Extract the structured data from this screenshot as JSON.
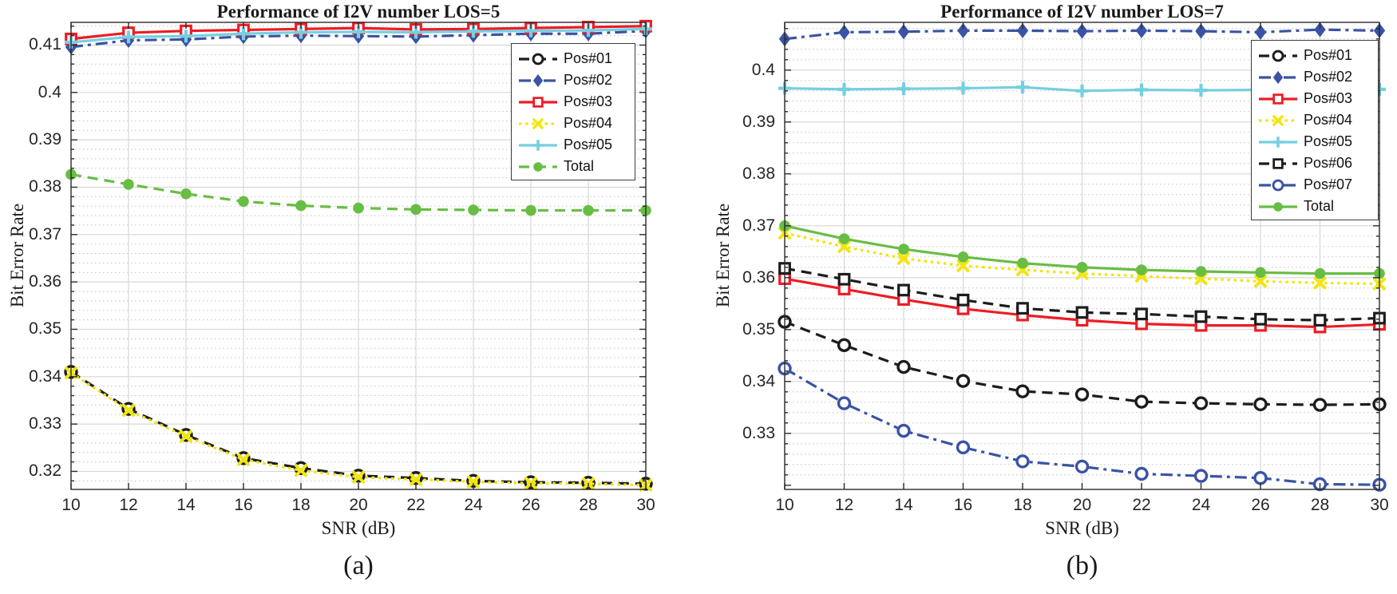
{
  "figure_captions": {
    "left": "(a)",
    "right": "(b)"
  },
  "chart_data": [
    {
      "type": "line",
      "title": "Performance of I2V number LOS=5",
      "xlabel": "SNR (dB)",
      "ylabel": "Bit Error Rate",
      "caption": "(a)",
      "x": [
        10,
        12,
        14,
        16,
        18,
        20,
        22,
        24,
        26,
        28,
        30
      ],
      "xlim": [
        10,
        30
      ],
      "ylim": [
        0.3162,
        0.4148
      ],
      "xtick_labels": [
        "10",
        "12",
        "14",
        "16",
        "18",
        "20",
        "22",
        "24",
        "26",
        "28",
        "30"
      ],
      "ytick_values": [
        0.32,
        0.33,
        0.34,
        0.35,
        0.36,
        0.37,
        0.38,
        0.39,
        0.4,
        0.41
      ],
      "ytick_labels": [
        "0.32",
        "0.33",
        "0.34",
        "0.35",
        "0.36",
        "0.37",
        "0.38",
        "0.39",
        "0.4",
        "0.41"
      ],
      "y_minor_step": 0.002,
      "grid": "major-solid minor-dotted",
      "legend_position": "inset-top-right",
      "series": [
        {
          "name": "Pos#01",
          "color": "#1c1c1c",
          "line": "dashed",
          "marker": "circle-open",
          "values": [
            0.341,
            0.3332,
            0.3277,
            0.3228,
            0.3207,
            0.3191,
            0.3186,
            0.318,
            0.3177,
            0.3176,
            0.3174
          ]
        },
        {
          "name": "Pos#02",
          "color": "#3a53a4",
          "line": "dashdot",
          "marker": "diamond-fill",
          "values": [
            0.4096,
            0.411,
            0.4112,
            0.4118,
            0.412,
            0.4119,
            0.4118,
            0.4121,
            0.4124,
            0.4124,
            0.413
          ]
        },
        {
          "name": "Pos#03",
          "color": "#ed1c24",
          "line": "solid",
          "marker": "square-open",
          "values": [
            0.4113,
            0.4126,
            0.413,
            0.4132,
            0.4134,
            0.4136,
            0.4133,
            0.4134,
            0.4136,
            0.4138,
            0.414
          ]
        },
        {
          "name": "Pos#04",
          "color": "#f2e50e",
          "line": "dotted",
          "marker": "x-mark",
          "values": [
            0.3408,
            0.3329,
            0.3274,
            0.3225,
            0.3202,
            0.3188,
            0.3183,
            0.3178,
            0.3175,
            0.3174,
            0.3171
          ]
        },
        {
          "name": "Pos#05",
          "color": "#76cfe0",
          "line": "solid",
          "marker": "plus-mark",
          "values": [
            0.4106,
            0.4117,
            0.4119,
            0.4124,
            0.4127,
            0.4128,
            0.4127,
            0.4129,
            0.413,
            0.4131,
            0.4134
          ]
        },
        {
          "name": "Total",
          "color": "#68bd45",
          "line": "dashed",
          "marker": "circle-fill",
          "values": [
            0.3827,
            0.3806,
            0.3786,
            0.377,
            0.3761,
            0.3756,
            0.3753,
            0.3752,
            0.3751,
            0.3751,
            0.3751
          ]
        }
      ]
    },
    {
      "type": "line",
      "title": "Performance of I2V number LOS=7",
      "xlabel": "SNR (dB)",
      "ylabel": "Bit Error Rate",
      "caption": "(b)",
      "x": [
        10,
        12,
        14,
        16,
        18,
        20,
        22,
        24,
        26,
        28,
        30
      ],
      "xlim": [
        10,
        30
      ],
      "ylim": [
        0.3192,
        0.4092
      ],
      "xtick_labels": [
        "10",
        "12",
        "14",
        "16",
        "18",
        "20",
        "22",
        "24",
        "26",
        "28",
        "30"
      ],
      "ytick_values": [
        0.33,
        0.34,
        0.35,
        0.36,
        0.37,
        0.38,
        0.39,
        0.4
      ],
      "ytick_labels": [
        "0.33",
        "0.34",
        "0.35",
        "0.36",
        "0.37",
        "0.38",
        "0.39",
        "0.4"
      ],
      "y_minor_step": 0.002,
      "grid": "major-solid minor-dotted",
      "legend_position": "inset-top-right",
      "series": [
        {
          "name": "Pos#01",
          "color": "#1c1c1c",
          "line": "dashed",
          "marker": "circle-open",
          "values": [
            0.3515,
            0.347,
            0.3428,
            0.3401,
            0.3381,
            0.3375,
            0.3361,
            0.3358,
            0.3356,
            0.3355,
            0.3356
          ]
        },
        {
          "name": "Pos#02",
          "color": "#3a53a4",
          "line": "dashdot",
          "marker": "diamond-fill",
          "values": [
            0.406,
            0.4073,
            0.4074,
            0.4076,
            0.4076,
            0.4075,
            0.4076,
            0.4075,
            0.4073,
            0.4078,
            0.4076
          ]
        },
        {
          "name": "Pos#03",
          "color": "#ed1c24",
          "line": "solid",
          "marker": "square-open",
          "values": [
            0.3598,
            0.3578,
            0.3558,
            0.354,
            0.3528,
            0.3518,
            0.3511,
            0.3508,
            0.3508,
            0.3505,
            0.351
          ]
        },
        {
          "name": "Pos#04",
          "color": "#f2e50e",
          "line": "dotted",
          "marker": "x-mark",
          "values": [
            0.3686,
            0.366,
            0.3637,
            0.3623,
            0.3615,
            0.3608,
            0.3603,
            0.3598,
            0.3593,
            0.359,
            0.3588
          ]
        },
        {
          "name": "Pos#05",
          "color": "#76cfe0",
          "line": "solid",
          "marker": "plus-mark",
          "values": [
            0.3965,
            0.3963,
            0.3964,
            0.3965,
            0.3967,
            0.396,
            0.3962,
            0.3961,
            0.3962,
            0.3963,
            0.3963
          ]
        },
        {
          "name": "Pos#06",
          "color": "#1c1c1c",
          "line": "dashed",
          "marker": "square-open",
          "values": [
            0.3618,
            0.3597,
            0.3576,
            0.3557,
            0.3541,
            0.3533,
            0.353,
            0.3525,
            0.352,
            0.3518,
            0.3522
          ]
        },
        {
          "name": "Pos#07",
          "color": "#3a53a4",
          "line": "dashdot",
          "marker": "circle-open",
          "values": [
            0.3425,
            0.3358,
            0.3305,
            0.3273,
            0.3246,
            0.3236,
            0.3222,
            0.3218,
            0.3214,
            0.3202,
            0.3201
          ]
        },
        {
          "name": "Total",
          "color": "#68bd45",
          "line": "solid",
          "marker": "circle-fill",
          "values": [
            0.37,
            0.3675,
            0.3655,
            0.364,
            0.3628,
            0.362,
            0.3615,
            0.3612,
            0.361,
            0.3608,
            0.3608
          ]
        }
      ]
    }
  ]
}
